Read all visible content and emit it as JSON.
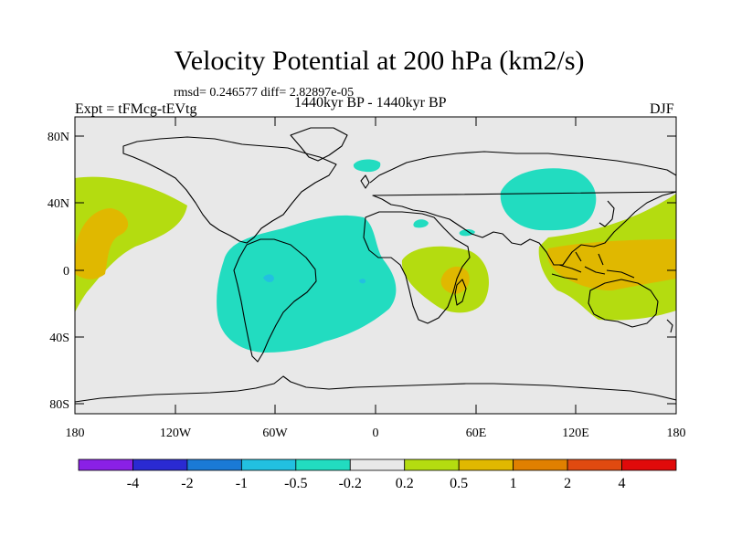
{
  "title": "Velocity Potential at 200 hPa (km2/s)",
  "stats": "rmsd= 0.246577 diff= 2.82897e-05",
  "subtitle": "1440kyr BP - 1440kyr BP",
  "experiment": "Expt = tFMcg-tEVtg",
  "season": "DJF",
  "lat_labels": [
    "80N",
    "40N",
    "0",
    "40S",
    "80S"
  ],
  "lon_labels": [
    "180",
    "120W",
    "60W",
    "0",
    "60E",
    "120E",
    "180"
  ],
  "colorbar": {
    "labels": [
      "-4",
      "-2",
      "-1",
      "-0.5",
      "-0.2",
      "0.2",
      "0.5",
      "1",
      "2",
      "4"
    ],
    "colors": [
      "#8a20e6",
      "#2a2ad2",
      "#1a7ad6",
      "#22c0e0",
      "#22dcc0",
      "#e8e8e8",
      "#b4dc10",
      "#e0b800",
      "#e08000",
      "#e04a10",
      "#e00a0a"
    ]
  },
  "fields": {
    "neutral": "#e8e8e8",
    "neg_weak": "#22dcc0",
    "neg_mid": "#22c0e0",
    "pos_weak": "#b4dc10",
    "pos_mid": "#e0b800"
  }
}
